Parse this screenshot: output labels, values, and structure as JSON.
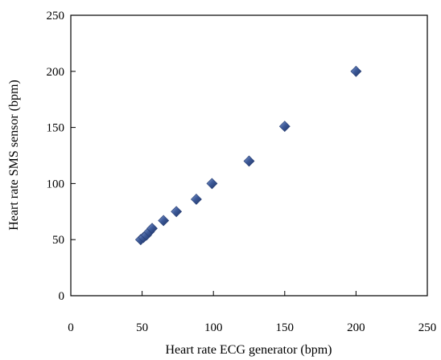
{
  "chart_data": {
    "type": "scatter",
    "title": "",
    "xlabel": "Heart rate ECG generator (bpm)",
    "ylabel": "Heart rate SMS sensor (bpm)",
    "xlim": [
      0,
      250
    ],
    "ylim": [
      0,
      250
    ],
    "x_ticks": [
      "0",
      "50",
      "100",
      "150",
      "200",
      "250"
    ],
    "y_ticks": [
      "0",
      "50",
      "100",
      "150",
      "200",
      "250"
    ],
    "grid": false,
    "legend": "none",
    "marker": "diamond",
    "marker_color": "#3d5a99",
    "series": [
      {
        "points": [
          {
            "x": 49,
            "y": 50
          },
          {
            "x": 51,
            "y": 52
          },
          {
            "x": 53,
            "y": 54
          },
          {
            "x": 55,
            "y": 57
          },
          {
            "x": 57,
            "y": 60
          },
          {
            "x": 65,
            "y": 67
          },
          {
            "x": 74,
            "y": 75
          },
          {
            "x": 88,
            "y": 86
          },
          {
            "x": 99,
            "y": 100
          },
          {
            "x": 125,
            "y": 120
          },
          {
            "x": 150,
            "y": 151
          },
          {
            "x": 200,
            "y": 200
          }
        ]
      }
    ]
  }
}
